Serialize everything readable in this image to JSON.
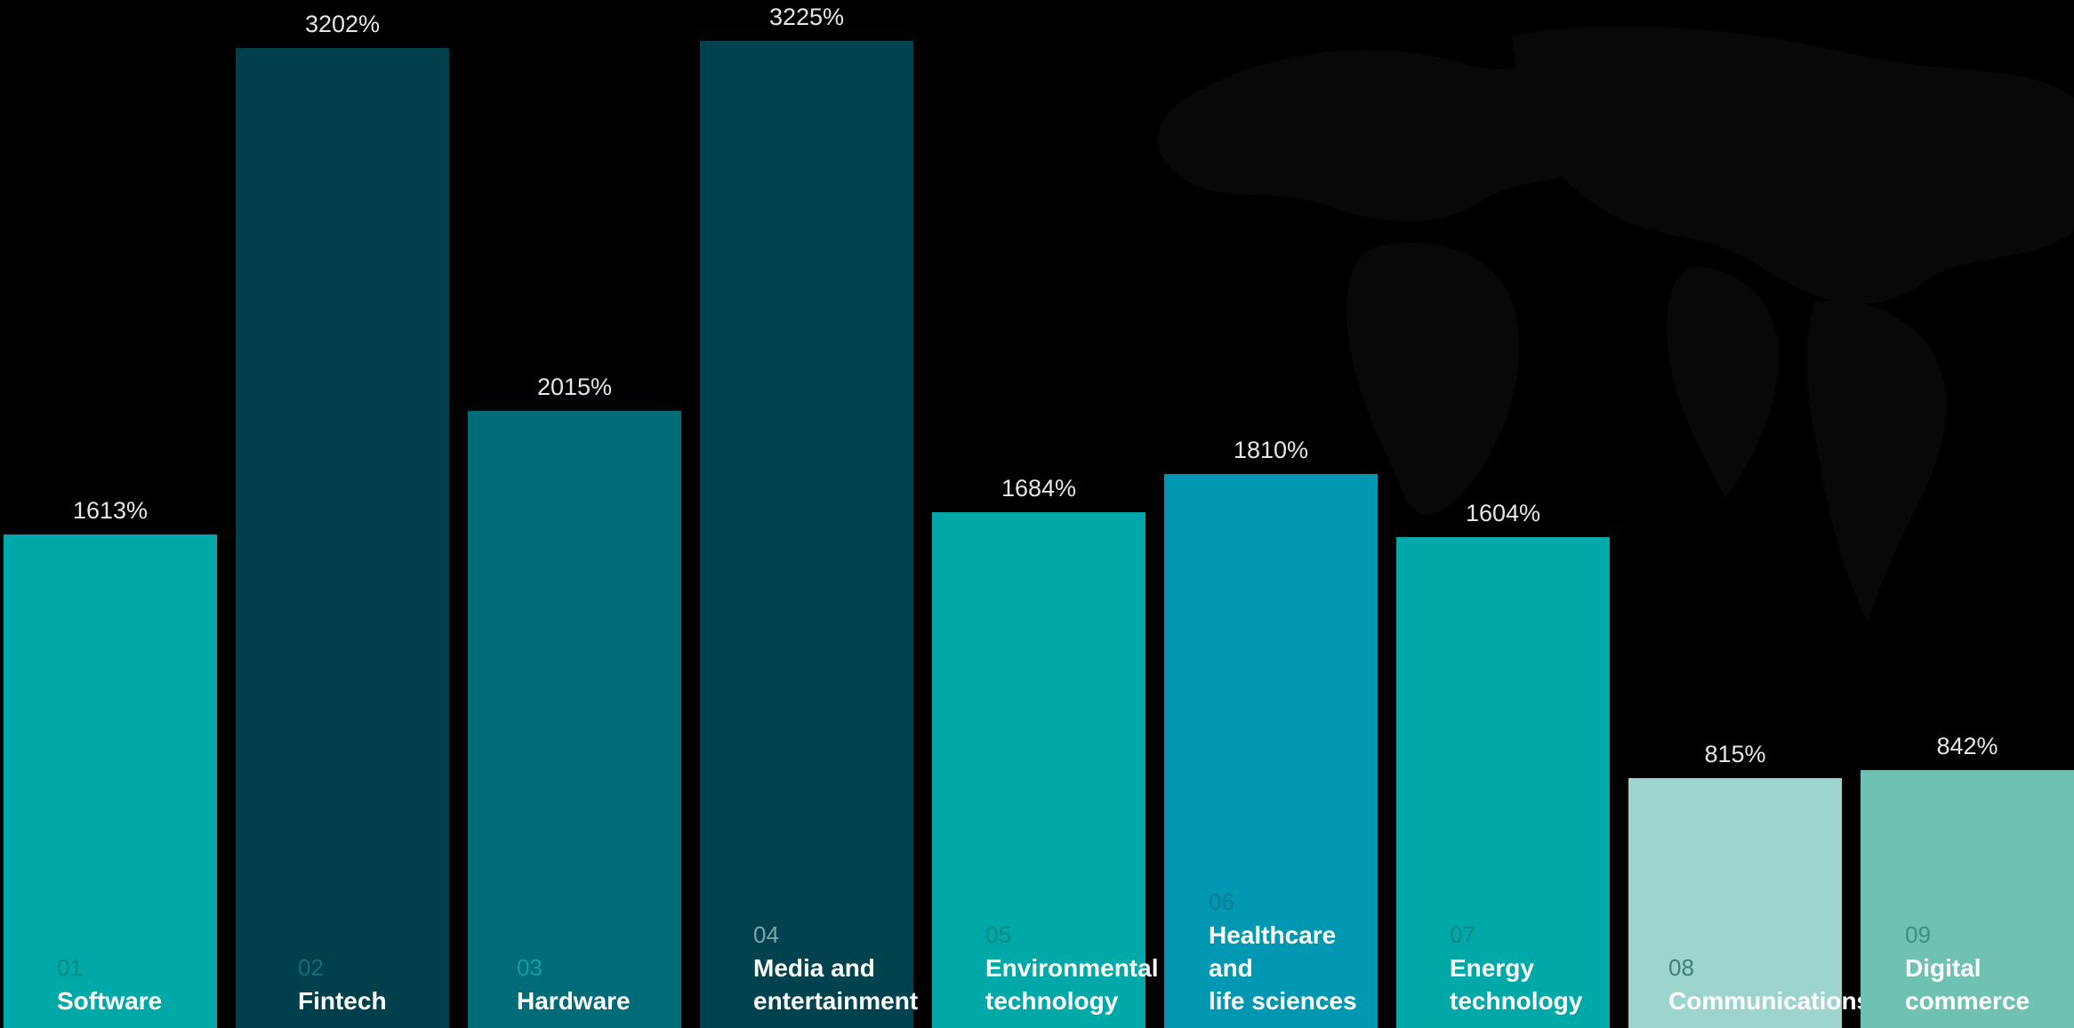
{
  "chart_data": {
    "type": "bar",
    "title": "",
    "xlabel": "",
    "ylabel": "",
    "ylim": [
      0,
      3300
    ],
    "grid": false,
    "legend": "none",
    "categories": [
      {
        "num": "01",
        "name": "Software"
      },
      {
        "num": "02",
        "name": "Fintech"
      },
      {
        "num": "03",
        "name": "Hardware"
      },
      {
        "num": "04",
        "name": "Media and\nentertainment"
      },
      {
        "num": "05",
        "name": "Environmental\ntechnology"
      },
      {
        "num": "06",
        "name": "Healthcare and\nlife sciences"
      },
      {
        "num": "07",
        "name": "Energy\ntechnology"
      },
      {
        "num": "08",
        "name": "Communications"
      },
      {
        "num": "09",
        "name": "Digital\ncommerce"
      }
    ],
    "values": [
      1613,
      3202,
      2015,
      3225,
      1684,
      1810,
      1604,
      815,
      842
    ],
    "value_labels": [
      "1613%",
      "3202%",
      "2015%",
      "3225%",
      "1684%",
      "1810%",
      "1604%",
      "815%",
      "842%"
    ],
    "bar_colors": [
      "#00a9a7",
      "#003f4c",
      "#006c77",
      "#00434f",
      "#00a9a7",
      "#0097b3",
      "#00a9a7",
      "#9dd4cd",
      "#6fc2b1"
    ],
    "number_colors": [
      "#0b8884",
      "#0e6f7c",
      "#0c9fa6",
      "#7fa4ab",
      "#0b8884",
      "#107b94",
      "#0b8884",
      "#3f7f7a",
      "#3d8f80"
    ],
    "name_colors": [
      "#ffffff",
      "#ffffff",
      "#ffffff",
      "#ffffff",
      "#ffffff",
      "#ffffff",
      "#ffffff",
      "#ffffff",
      "#ffffff"
    ]
  },
  "background": {
    "color": "#000000",
    "decoration": "faint-world-map"
  }
}
